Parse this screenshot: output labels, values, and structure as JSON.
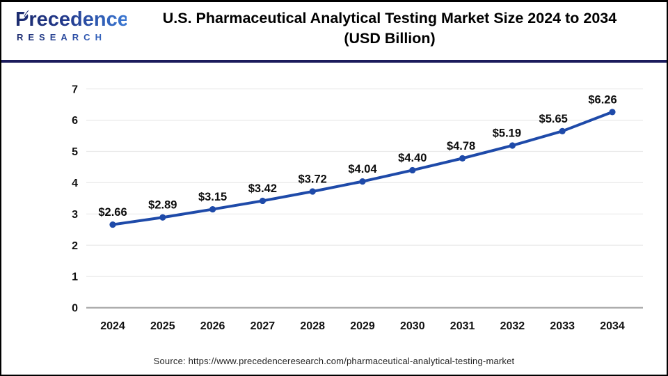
{
  "logo": {
    "brand": "Precedence",
    "sub": "RESEARCH",
    "leaf_icon": "leaf-icon"
  },
  "header": {
    "title_line1": "U.S. Pharmaceutical Analytical Testing Market Size 2024 to 2034",
    "title_line2": "(USD Billion)"
  },
  "source": "Source: https://www.precedenceresearch.com/pharmaceutical-analytical-testing-market",
  "colors": {
    "line": "#1e4aa9",
    "marker": "#1e4aa9",
    "gridline": "#e9e9e9",
    "zero_axis": "#adadad",
    "separator": "#1b1b5c",
    "title_text": "#000000",
    "logo_navy": "#1c2b6e",
    "logo_blue": "#3a77d2"
  },
  "chart_data": {
    "type": "line",
    "title": "U.S. Pharmaceutical Analytical Testing Market Size 2024 to 2034 (USD Billion)",
    "categories": [
      "2024",
      "2025",
      "2026",
      "2027",
      "2028",
      "2029",
      "2030",
      "2031",
      "2032",
      "2033",
      "2034"
    ],
    "values": [
      2.66,
      2.89,
      3.15,
      3.42,
      3.72,
      4.04,
      4.4,
      4.78,
      5.19,
      5.65,
      6.26
    ],
    "point_labels": [
      "$2.66",
      "$2.89",
      "$3.15",
      "$3.42",
      "$3.72",
      "$4.04",
      "$4.40",
      "$4.78",
      "$5.19",
      "$5.65",
      "$6.26"
    ],
    "xlabel": "",
    "ylabel": "",
    "ylim": [
      0,
      7
    ],
    "yticks": [
      0,
      1,
      2,
      3,
      4,
      5,
      6,
      7
    ],
    "grid": true,
    "legend": "none",
    "line_color": "#1e4aa9",
    "marker": "circle"
  }
}
